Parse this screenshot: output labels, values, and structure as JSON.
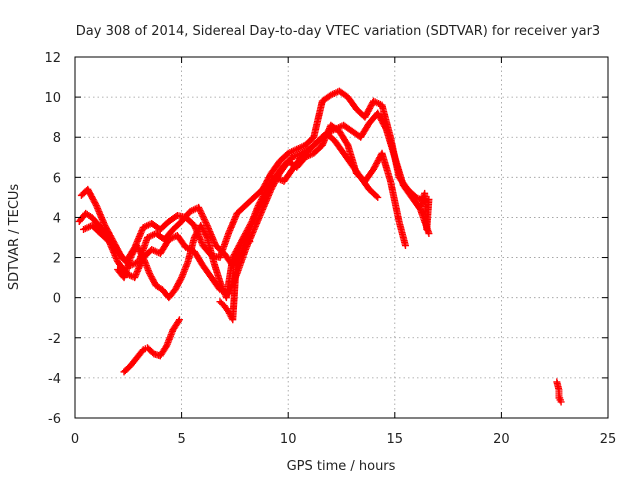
{
  "chart_data": {
    "type": "scatter",
    "title": "Day 308 of 2014, Sidereal Day-to-day VTEC variation (SDTVAR) for receiver yar3",
    "xlabel": "GPS time / hours",
    "ylabel": "SDTVAR / TECUs",
    "xlim": [
      0,
      25
    ],
    "ylim": [
      -6,
      12
    ],
    "xticks": [
      0,
      5,
      10,
      15,
      20,
      25
    ],
    "yticks": [
      -6,
      -4,
      -2,
      0,
      2,
      4,
      6,
      8,
      10,
      12
    ],
    "grid": true,
    "marker": "+",
    "color": "#ff0000",
    "series": [
      {
        "x": [
          0.2,
          0.5,
          0.8,
          1.2,
          1.6,
          2.0,
          2.4,
          2.8,
          3.2,
          3.6,
          4.0,
          4.4,
          4.8,
          5.2,
          5.6,
          6.0,
          6.4,
          6.8,
          7.2,
          7.6,
          8.0,
          8.4,
          8.8,
          9.2,
          9.6,
          10.0,
          10.4,
          10.8,
          11.2,
          11.6,
          12.0,
          12.4,
          12.8,
          13.2,
          13.6,
          14.0,
          14.4,
          14.8,
          15.2,
          15.6,
          16.0,
          16.4
        ],
        "y": [
          3.8,
          4.2,
          4.0,
          3.5,
          3.0,
          2.3,
          1.8,
          2.5,
          3.5,
          3.7,
          3.4,
          3.8,
          4.1,
          4.0,
          3.6,
          2.6,
          2.1,
          2.0,
          3.2,
          4.2,
          4.6,
          5.0,
          5.4,
          6.2,
          6.8,
          7.2,
          7.4,
          7.6,
          8.0,
          9.8,
          10.1,
          10.3,
          10.0,
          9.4,
          9.0,
          9.8,
          9.6,
          8.0,
          6.0,
          5.4,
          5.0,
          4.8
        ]
      },
      {
        "x": [
          0.3,
          0.6,
          1.0,
          1.4,
          1.8,
          2.2,
          2.6,
          3.0,
          3.4,
          3.8,
          4.2,
          4.6,
          5.0,
          5.4,
          5.8,
          6.2,
          6.6,
          7.0,
          7.4,
          7.8,
          8.2,
          8.6,
          9.0,
          9.4,
          9.8,
          10.2,
          10.6,
          11.0,
          11.4,
          11.8,
          12.2,
          12.6,
          13.0,
          13.4,
          13.8,
          14.2,
          14.6,
          15.0,
          15.4,
          15.8,
          16.2,
          16.6
        ],
        "y": [
          5.1,
          5.4,
          4.6,
          3.6,
          2.8,
          2.0,
          1.6,
          1.8,
          3.0,
          3.2,
          2.9,
          3.4,
          3.8,
          4.3,
          4.5,
          3.6,
          2.6,
          2.2,
          1.6,
          2.2,
          3.4,
          4.4,
          5.2,
          6.0,
          6.6,
          7.0,
          7.2,
          7.4,
          7.8,
          8.2,
          8.4,
          8.6,
          8.3,
          8.0,
          8.7,
          9.2,
          8.4,
          7.0,
          5.6,
          5.0,
          4.4,
          3.2
        ]
      },
      {
        "x": [
          0.4,
          0.8,
          1.2,
          1.6,
          2.0,
          2.4,
          2.8,
          3.2,
          3.6,
          4.0,
          4.4,
          4.8,
          5.2,
          5.6,
          6.0,
          6.4,
          6.8,
          7.2,
          7.6,
          8.0,
          8.4,
          8.8,
          9.2,
          9.6,
          10.0,
          10.4,
          10.8,
          11.2,
          11.6,
          12.0,
          12.4,
          12.8,
          13.2,
          13.6,
          14.0,
          14.4,
          14.8,
          15.2,
          15.5
        ],
        "y": [
          3.4,
          3.6,
          3.2,
          2.8,
          1.8,
          1.2,
          1.0,
          2.0,
          2.4,
          2.2,
          2.9,
          3.1,
          2.5,
          2.3,
          1.6,
          1.0,
          0.4,
          0.2,
          1.2,
          2.4,
          3.4,
          4.4,
          5.4,
          6.2,
          6.8,
          6.5,
          7.0,
          7.2,
          7.6,
          8.6,
          8.3,
          7.6,
          6.2,
          5.8,
          6.4,
          7.2,
          5.8,
          3.8,
          2.6
        ]
      },
      {
        "x": [
          2.0,
          2.3,
          2.6,
          2.9,
          3.2,
          3.5,
          3.8,
          4.1,
          4.4,
          4.7,
          5.0,
          5.3,
          5.6,
          5.9,
          6.2,
          6.5,
          6.8,
          7.1,
          7.4,
          7.7,
          8.0,
          8.3,
          8.6,
          9.0,
          9.4,
          9.8,
          10.2,
          10.6,
          11.0,
          11.4,
          11.8,
          12.2,
          12.6,
          13.0,
          13.4,
          13.8,
          14.2
        ],
        "y": [
          1.4,
          1.0,
          2.0,
          2.6,
          2.0,
          1.2,
          0.6,
          0.4,
          0.0,
          0.4,
          1.0,
          1.8,
          3.0,
          3.6,
          3.0,
          1.8,
          0.8,
          0.0,
          2.0,
          2.6,
          3.2,
          3.8,
          4.6,
          5.4,
          6.0,
          5.8,
          6.4,
          7.0,
          7.4,
          7.8,
          8.2,
          7.8,
          7.2,
          6.6,
          6.0,
          5.4,
          5.0
        ]
      },
      {
        "x": [
          2.3,
          2.6,
          2.9,
          3.2,
          3.4,
          3.7,
          4.0,
          4.3,
          4.6,
          4.9
        ],
        "y": [
          -3.7,
          -3.4,
          -3.0,
          -2.6,
          -2.5,
          -2.8,
          -2.9,
          -2.4,
          -1.6,
          -1.1
        ]
      },
      {
        "x": [
          6.8,
          7.0,
          7.2,
          7.4,
          7.6,
          7.9,
          8.2
        ],
        "y": [
          -0.2,
          -0.4,
          -0.7,
          -1.1,
          2.3,
          2.9,
          2.8
        ]
      },
      {
        "x": [
          16.2,
          16.4,
          16.5,
          16.6
        ],
        "y": [
          4.6,
          5.2,
          3.4,
          4.9
        ]
      },
      {
        "x": [
          22.6,
          22.7,
          22.7,
          22.8,
          22.7
        ],
        "y": [
          -4.2,
          -4.6,
          -4.9,
          -5.2,
          -5.0
        ]
      }
    ]
  }
}
